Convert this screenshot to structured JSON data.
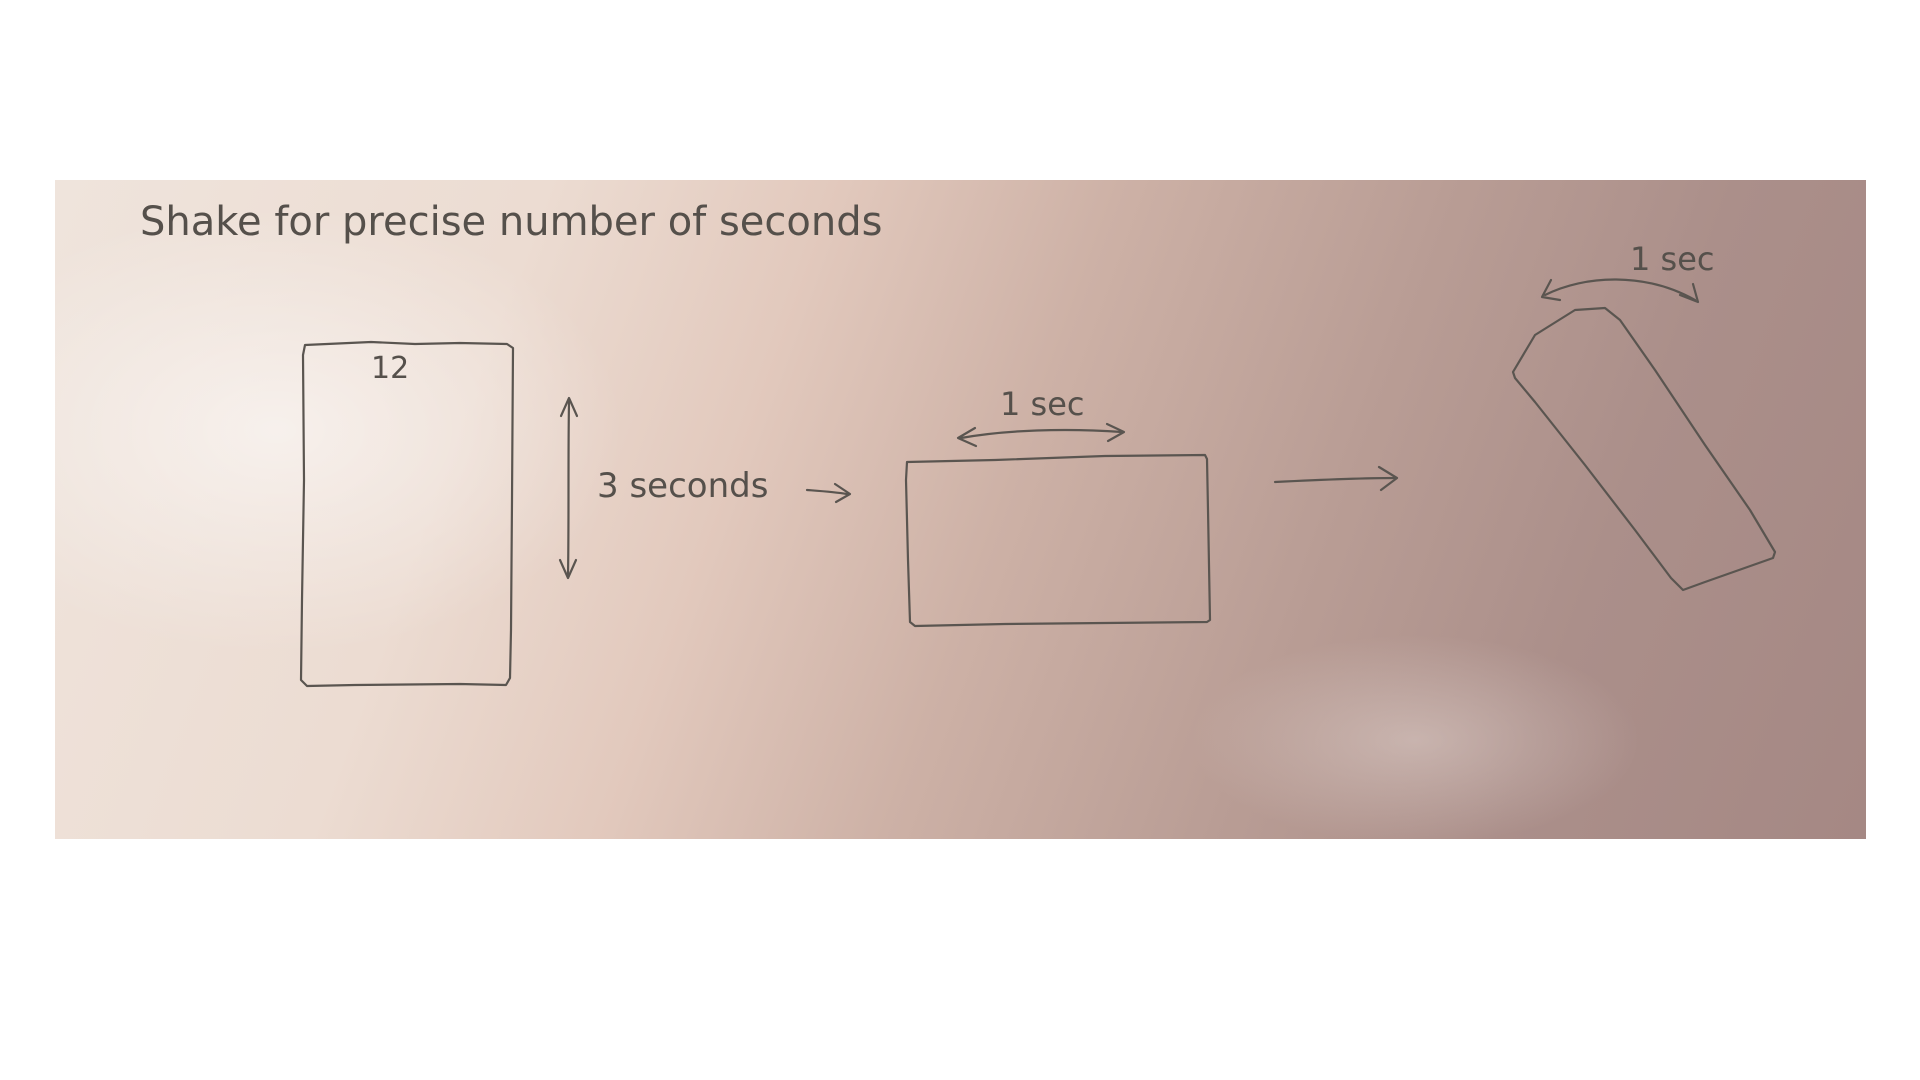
{
  "title": "Shake for precise number of seconds",
  "phone_number_label": "12",
  "step1_duration": "3 seconds",
  "step2_duration": "1 sec",
  "step3_duration": "1 sec",
  "colors": {
    "paper_light": "#efe4dc",
    "paper_shadow": "#a58884",
    "ink": "#5a5550"
  }
}
